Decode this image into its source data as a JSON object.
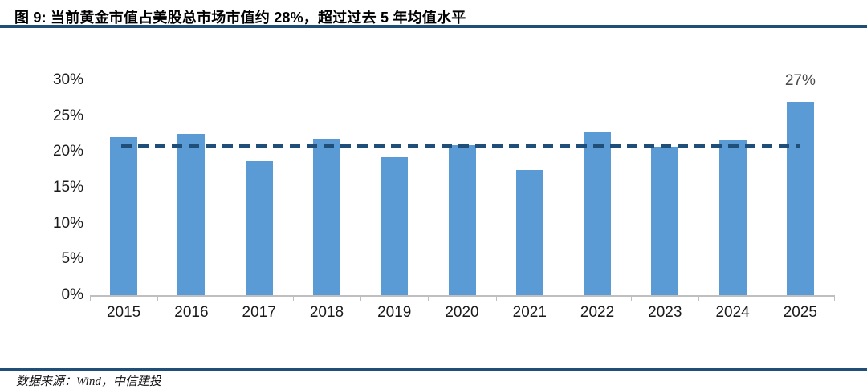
{
  "figure": {
    "title": "图 9:  当前黄金市值占美股总市场市值约 28%，超过过去 5 年均值水平",
    "source": "数据来源：Wind，中信建投"
  },
  "colors": {
    "bar": "#5B9BD5",
    "reference_line": "#1F4E79",
    "header_rule": "#1F4E79",
    "footer_rule": "#1F4E79",
    "axis": "#BFBFBF",
    "tick_label": "#1a1a1a",
    "data_label": "#4a4a4a"
  },
  "chart_data": {
    "type": "bar",
    "title": "",
    "xlabel": "",
    "ylabel": "",
    "categories": [
      "2015",
      "2016",
      "2017",
      "2018",
      "2019",
      "2020",
      "2021",
      "2022",
      "2023",
      "2024",
      "2025"
    ],
    "values": [
      22.1,
      22.5,
      18.7,
      21.8,
      19.3,
      20.9,
      17.5,
      22.8,
      20.7,
      21.6,
      27.0
    ],
    "ylim": [
      0,
      30
    ],
    "ytick_values": [
      30,
      25,
      20,
      15,
      10,
      5,
      0
    ],
    "ytick_labels": [
      "30%",
      "25%",
      "20%",
      "15%",
      "10%",
      "5%",
      "0%"
    ],
    "grid": false,
    "legend": false,
    "reference_line": {
      "value": 20.8,
      "style": "dashed",
      "meaning": "past-5-year-average"
    },
    "annotations": [
      {
        "category": "2025",
        "category_index": 10,
        "text": "27%"
      }
    ]
  }
}
